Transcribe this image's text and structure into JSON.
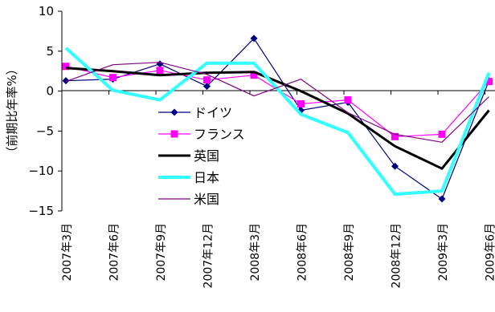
{
  "chart_data": {
    "type": "line",
    "title": "",
    "xlabel": "",
    "ylabel": "（前期比年率%）",
    "ylim": [
      -15,
      10
    ],
    "yticks": [
      10,
      5,
      0,
      -5,
      -10,
      -15
    ],
    "categories": [
      "2007年3月",
      "2007年6月",
      "2007年9月",
      "2007年12月",
      "2008年3月",
      "2008年6月",
      "2008年9月",
      "2008年12月",
      "2009年3月",
      "2009年6月"
    ],
    "legend_position": "center",
    "grid": false,
    "series": [
      {
        "name": "ドイツ",
        "color": "#000080",
        "marker": "diamond",
        "values": [
          1.3,
          1.5,
          3.4,
          0.6,
          6.6,
          -2.4,
          -1.4,
          -9.4,
          -13.5,
          1.3
        ]
      },
      {
        "name": "フランス",
        "color": "#FF00FF",
        "marker": "square",
        "values": [
          3.1,
          1.7,
          2.6,
          1.4,
          2.0,
          -1.6,
          -1.1,
          -5.7,
          -5.4,
          1.2
        ]
      },
      {
        "name": "英国",
        "color": "#000000",
        "marker": "none",
        "values": [
          2.9,
          2.5,
          2.0,
          2.3,
          2.4,
          0.0,
          -2.8,
          -6.9,
          -9.7,
          -2.4
        ]
      },
      {
        "name": "日本",
        "color": "#33FFFF",
        "marker": "none",
        "values": [
          5.4,
          0.1,
          -1.1,
          3.5,
          3.5,
          -2.9,
          -5.2,
          -12.9,
          -12.5,
          2.3
        ]
      },
      {
        "name": "米国",
        "color": "#800080",
        "marker": "none",
        "values": [
          1.2,
          3.3,
          3.6,
          2.1,
          -0.6,
          1.5,
          -2.7,
          -5.4,
          -6.4,
          -0.7
        ]
      }
    ]
  }
}
